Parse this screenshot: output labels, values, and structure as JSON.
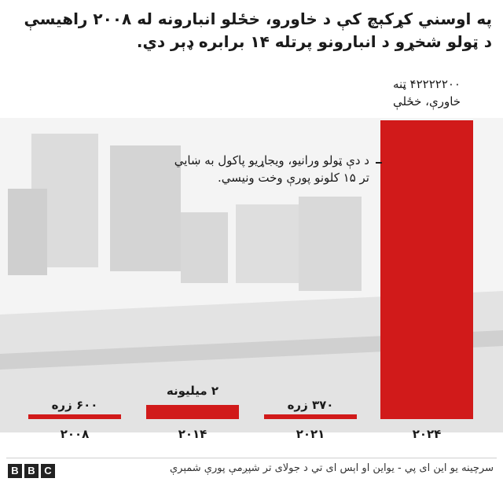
{
  "title": "په اوسني کړکېچ کې د خاورو، خځلو انبارونه له ۲۰۰۸ راهیسې د ټولو شخړو د انبارونو پرتله ۱۴ برابره ډېر دي.",
  "annotation": "د دې ټولو ورانيو، ویجاړیو پاکول به ښايي تر ۱۵ کلونو پورې وخت ونیسي.",
  "source": "سرچینه یو این ای پي - یواین او اېس ای تي د جولای تر شپږمې پورې شمېرې",
  "logo": [
    "B",
    "B",
    "C"
  ],
  "colors": {
    "bar": "#d11a1a",
    "text": "#1a1a1a",
    "background_ruins": "#d9d9d9"
  },
  "chart_data": {
    "type": "bar",
    "categories": [
      "۲۰۰۸",
      "۲۰۱۴",
      "۲۰۲۱",
      "۲۰۲۴"
    ],
    "values": [
      600000,
      2000000,
      370000,
      42222200
    ],
    "value_labels": [
      "۶۰۰ زره",
      "۲ میلیونه",
      "۳۷۰ زره",
      "۴۲۲۲۲۲۰۰ ټنه خاورې، خځلې"
    ],
    "ylim": [
      0,
      42222200
    ],
    "title": "په اوسني کړکېچ کې د خاورو، خځلو انبارونه له ۲۰۰۸ راهیسې د ټولو شخړو د انبارونو پرتله ۱۴ برابره ډېر دي."
  }
}
